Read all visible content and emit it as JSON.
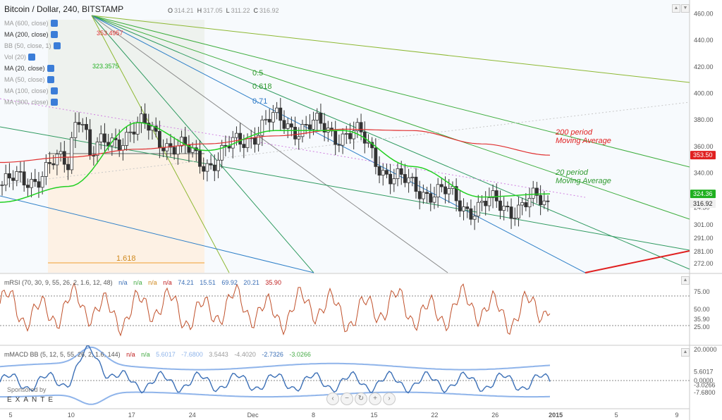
{
  "header": {
    "title": "Bitcoin / Dollar, 240, BITSTAMP",
    "ohlc": [
      {
        "k": "O",
        "v": "314.21"
      },
      {
        "k": "H",
        "v": "317.05"
      },
      {
        "k": "L",
        "v": "311.22"
      },
      {
        "k": "C",
        "v": "316.92"
      }
    ]
  },
  "legend": [
    {
      "label": "MA (600, close)",
      "muted": true
    },
    {
      "label": "MA (200, close)",
      "muted": false
    },
    {
      "label": "BB (50, close, 1)",
      "muted": true
    },
    {
      "label": "Vol (20)",
      "muted": true
    },
    {
      "label": "MA (20, close)",
      "muted": false
    },
    {
      "label": "MA (50, close)",
      "muted": true
    },
    {
      "label": "MA (100, close)",
      "muted": true
    },
    {
      "label": "MA (300, close)",
      "muted": true
    }
  ],
  "price_axis": {
    "ticks": [
      "460.00",
      "440.00",
      "420.00",
      "400.00",
      "380.00",
      "360.00",
      "340.00",
      "324.36",
      "316.92",
      "24:30",
      "301.00",
      "291.00",
      "281.00",
      "272.00"
    ],
    "badges": [
      {
        "value": "353.50",
        "color": "#e02020"
      },
      {
        "value": "324.36",
        "color": "#20b020"
      },
      {
        "value": "316.92",
        "color": "#f0f0f0"
      }
    ]
  },
  "time_axis": [
    "5",
    "10",
    "17",
    "24",
    "Dec",
    "8",
    "15",
    "22",
    "26",
    "2015",
    "5",
    "9"
  ],
  "annotations": {
    "ma200_peak": "353.4957",
    "ma20_value": "323.3575",
    "fib_levels": [
      "0.5",
      "0.618",
      "0.71",
      "1.618"
    ],
    "text_200": [
      "200 period",
      "Moving Average"
    ],
    "text_20": [
      "20 period",
      "Moving Average"
    ]
  },
  "rsi": {
    "legend": "mRSI (70, 30, 9, 55, 26, 2, 1.6, 12, 48)",
    "values": [
      "n/a",
      "n/a",
      "n/a",
      "n/a",
      "74.21",
      "15.51",
      "69.92",
      "20.21",
      "35.90"
    ],
    "ticks": [
      "75.00",
      "50.00",
      "35.90",
      "25.00"
    ]
  },
  "macd": {
    "legend": "mMACD BB (5, 12, 5, 55, 26, 2, 1.6, 144)",
    "values": [
      "n/a",
      "n/a",
      "5.6017",
      "-7.6800",
      "3.5443",
      "-4.4020",
      "-2.7326",
      "-3.0266"
    ],
    "ticks": [
      "20.0000",
      "5.6017",
      "0.0000",
      "-3.0266",
      "-7.6800"
    ]
  },
  "sponsor": {
    "line1": "Sponsored by",
    "line2": "EXANTE"
  },
  "colors": {
    "ma200": "#e03030",
    "ma20": "#22d022",
    "rsi": "#c0502a",
    "macd": "#3b6fb6",
    "band": "#8fb4ea"
  },
  "chart_data": {
    "type": "line",
    "title": "Bitcoin / Dollar, 240, BITSTAMP",
    "x": [
      "Nov 5",
      "Nov 10",
      "Nov 17",
      "Nov 24",
      "Dec 1",
      "Dec 8",
      "Dec 15",
      "Dec 22",
      "Dec 26"
    ],
    "series": [
      {
        "name": "Price",
        "values": [
          331,
          347,
          373,
          350,
          378,
          371,
          330,
          315,
          317
        ]
      },
      {
        "name": "MA (20, close)",
        "values": [
          318,
          330,
          378,
          357,
          372,
          372,
          345,
          322,
          324.36
        ]
      },
      {
        "name": "MA (200, close)",
        "values": [
          348,
          352,
          358,
          362,
          368,
          373,
          372,
          362,
          353.5
        ]
      }
    ],
    "ylim": [
      265,
      465
    ]
  }
}
